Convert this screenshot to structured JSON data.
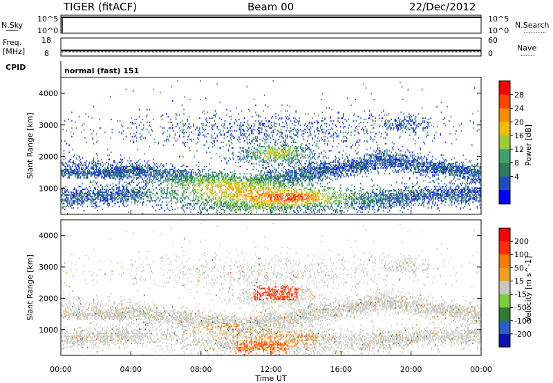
{
  "header": {
    "title": "TIGER (fitACF)",
    "beam": "Beam 00",
    "date": "22/Dec/2012"
  },
  "top_panels": {
    "nsky_label": "N.Sky",
    "nsearch_label": "N.Search",
    "nsky_ticks": [
      "10^5",
      "10^0"
    ],
    "nsearch_ticks": [
      "10^5",
      "10^0"
    ],
    "freq_label_1": "Freq.",
    "freq_label_2": "[MHz]",
    "freq_ticks": [
      "18",
      "8"
    ],
    "nave_label": "Nave",
    "nave_ticks": [
      "60",
      "0"
    ],
    "cpid_label": "CPID",
    "cpid_text": "normal (fast) 151"
  },
  "chart_data": [
    {
      "type": "heatmap",
      "name": "Power",
      "ylabel": "Slant Range [km]",
      "xlabel": "",
      "ylim": [
        180,
        4500
      ],
      "xlim": [
        0,
        24
      ],
      "yticks": [
        "4000",
        "3000",
        "2000",
        "1000"
      ],
      "ytick_values": [
        4000,
        3000,
        2000,
        1000
      ],
      "colorbar": {
        "label": "Power [dB]",
        "ticks": [
          "28",
          "24",
          "20",
          "16",
          "12",
          "8",
          "4"
        ],
        "tick_values": [
          28,
          24,
          20,
          16,
          12,
          8,
          4
        ],
        "range": [
          0,
          32
        ],
        "colors": [
          "#0000ff",
          "#1f4fbf",
          "#2e7d5a",
          "#3fa06a",
          "#9acd32",
          "#f0c000",
          "#ff8c00",
          "#ff4500",
          "#ff0000"
        ]
      }
    },
    {
      "type": "heatmap",
      "name": "Velocity",
      "ylabel": "Slant Range [km]",
      "xlabel": "Time UT",
      "ylim": [
        180,
        4500
      ],
      "xlim": [
        0,
        24
      ],
      "yticks": [
        "4000",
        "3000",
        "2000",
        "1000"
      ],
      "ytick_values": [
        4000,
        3000,
        2000,
        1000
      ],
      "xticks": [
        "00:00",
        "04:00",
        "08:00",
        "12:00",
        "16:00",
        "20:00",
        "00:00"
      ],
      "xtick_values": [
        0,
        4,
        8,
        12,
        16,
        20,
        24
      ],
      "colorbar": {
        "label": "Velocity [m s^-1]",
        "ticks": [
          "200",
          "100",
          "50",
          "15",
          "-15",
          "-50",
          "-100",
          "-200"
        ],
        "colors": [
          "#1010b0",
          "#2860c0",
          "#2e7d32",
          "#7ccd3a",
          "#c8c8c0",
          "#f0a020",
          "#ff7a00",
          "#ff3000",
          "#ff0000"
        ]
      }
    }
  ]
}
